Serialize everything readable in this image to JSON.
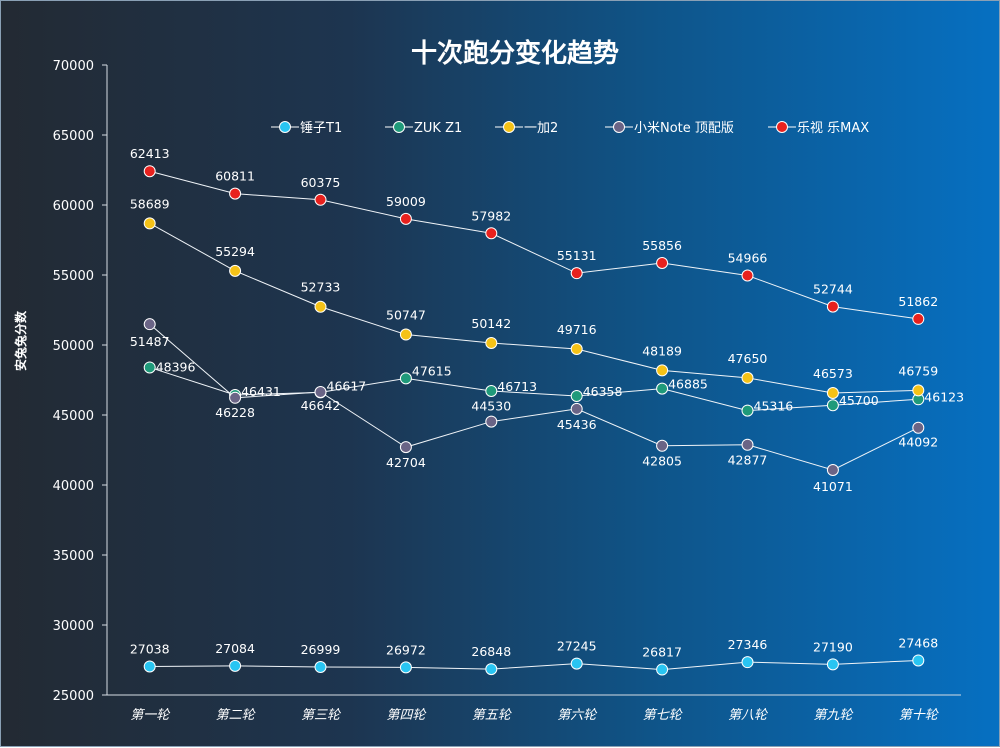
{
  "chart_data": {
    "type": "line",
    "title": "十次跑分变化趋势",
    "ylabel": "安兔兔分数",
    "xlabel": "",
    "ylim": [
      25000,
      70000
    ],
    "yticks": [
      25000,
      30000,
      35000,
      40000,
      45000,
      50000,
      55000,
      60000,
      65000,
      70000
    ],
    "categories": [
      "第一轮",
      "第二轮",
      "第三轮",
      "第四轮",
      "第五轮",
      "第六轮",
      "第七轮",
      "第八轮",
      "第九轮",
      "第十轮"
    ],
    "legend_position": "top",
    "grid": false,
    "series": [
      {
        "name": "锤子T1",
        "color": "#29c5f2",
        "values": [
          27038,
          27084,
          26999,
          26972,
          26848,
          27245,
          26817,
          27346,
          27190,
          27468
        ]
      },
      {
        "name": "ZUK Z1",
        "color": "#1f9a7a",
        "values": [
          48396,
          46431,
          46617,
          47615,
          46713,
          46358,
          46885,
          45316,
          45700,
          46123
        ]
      },
      {
        "name": "一加2",
        "color": "#f5c217",
        "values": [
          58689,
          55294,
          52733,
          50747,
          50142,
          49716,
          48189,
          47650,
          46573,
          46759
        ]
      },
      {
        "name": "小米Note 顶配版",
        "color": "#6a6486",
        "values": [
          51487,
          46228,
          46642,
          42704,
          44530,
          45436,
          42805,
          42877,
          41071,
          44092
        ]
      },
      {
        "name": "乐视 乐MAX",
        "color": "#e8211e",
        "values": [
          62413,
          60811,
          60375,
          59009,
          57982,
          55131,
          55856,
          54966,
          52744,
          51862
        ]
      }
    ]
  }
}
